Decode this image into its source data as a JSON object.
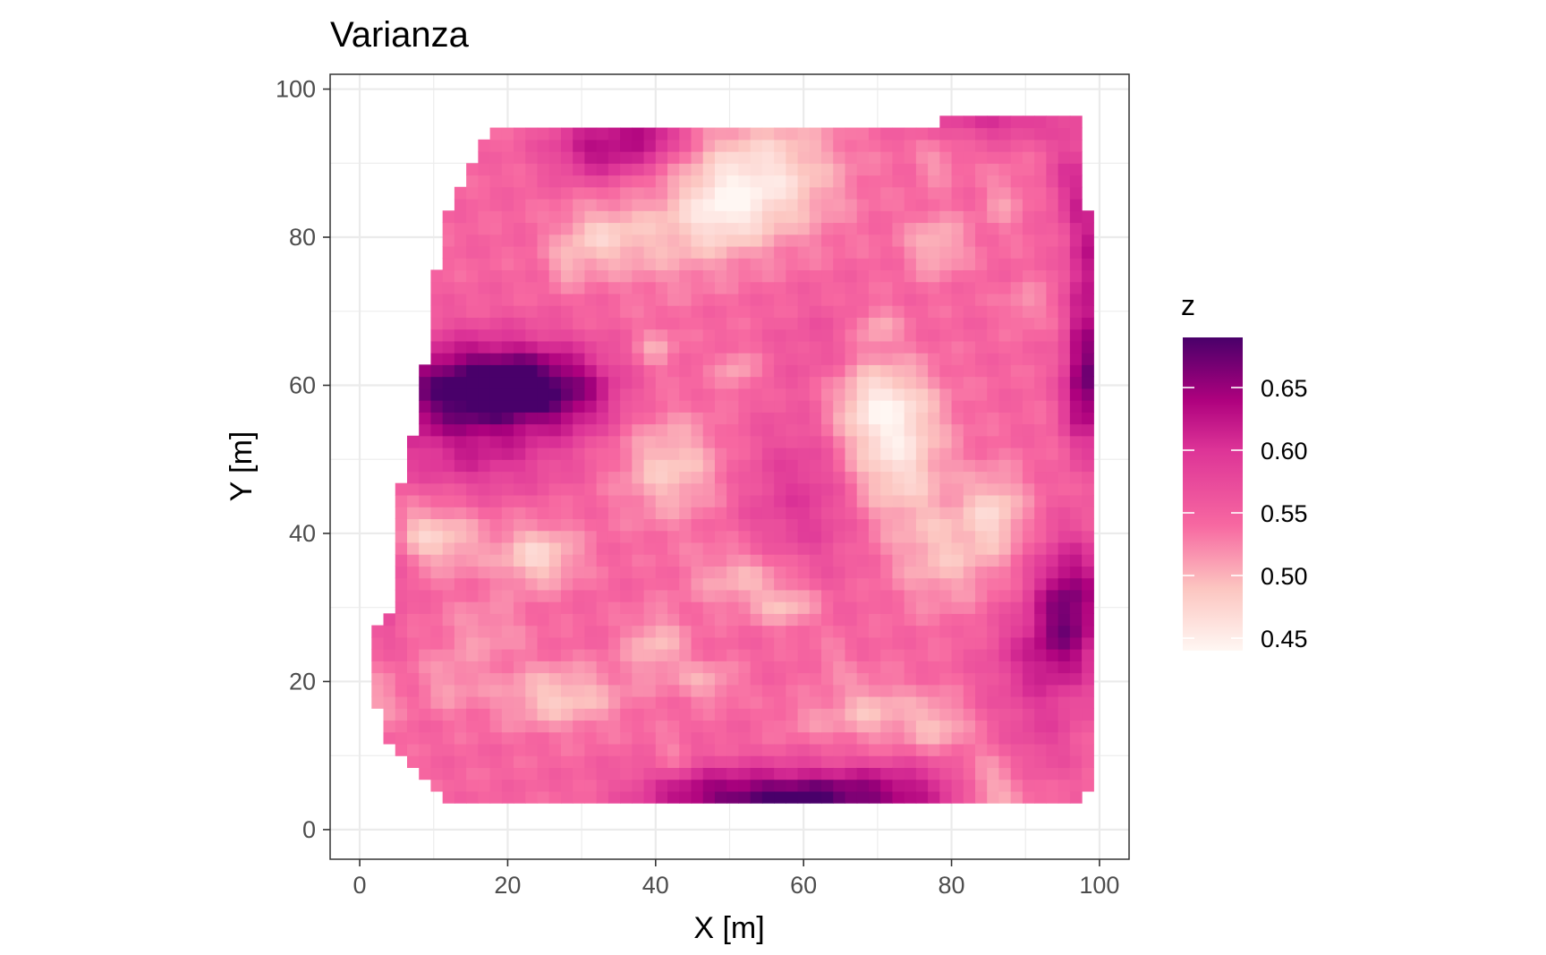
{
  "chart_data": {
    "type": "heatmap",
    "title": "Varianza",
    "xlabel": "X [m]",
    "ylabel": "Y [m]",
    "xlim": [
      -4,
      104
    ],
    "ylim": [
      -4,
      102
    ],
    "x_ticks": [
      0,
      20,
      40,
      60,
      80,
      100
    ],
    "y_ticks": [
      0,
      20,
      40,
      60,
      80,
      100
    ],
    "x_tick_labels": [
      "0",
      "20",
      "40",
      "60",
      "80",
      "100"
    ],
    "y_tick_labels": [
      "0",
      "20",
      "40",
      "60",
      "80",
      "100"
    ],
    "grid": true,
    "colorbar": {
      "title": "z",
      "range": [
        0.44,
        0.69
      ],
      "ticks": [
        0.65,
        0.6,
        0.55,
        0.5,
        0.45
      ],
      "tick_labels": [
        "0.65",
        "0.60",
        "0.55",
        "0.50",
        "0.45"
      ],
      "stops": [
        {
          "value": 0.44,
          "color": "#fff7f3"
        },
        {
          "value": 0.49,
          "color": "#fcc5c0"
        },
        {
          "value": 0.54,
          "color": "#f768a1"
        },
        {
          "value": 0.6,
          "color": "#dd3497"
        },
        {
          "value": 0.64,
          "color": "#ae017e"
        },
        {
          "value": 0.69,
          "color": "#49006a"
        }
      ]
    },
    "grid_cell_size": 1.6,
    "domain_boundary": [
      [
        17,
        94
      ],
      [
        35,
        94
      ],
      [
        35,
        95
      ],
      [
        78,
        95
      ],
      [
        78,
        97
      ],
      [
        97,
        97
      ],
      [
        97,
        83
      ],
      [
        99,
        83
      ],
      [
        99,
        6
      ],
      [
        97,
        3
      ],
      [
        13,
        3
      ],
      [
        8,
        7
      ],
      [
        5,
        10
      ],
      [
        3,
        14
      ],
      [
        1,
        20
      ],
      [
        3,
        30
      ],
      [
        4,
        30
      ],
      [
        5,
        42
      ],
      [
        6,
        51
      ],
      [
        7,
        51
      ],
      [
        8,
        63
      ],
      [
        9,
        63
      ],
      [
        9,
        73
      ],
      [
        10,
        73
      ],
      [
        11,
        81
      ],
      [
        12,
        83
      ],
      [
        14,
        87
      ],
      [
        16,
        91
      ]
    ],
    "value_field": {
      "base": 0.545,
      "features": [
        {
          "x": 14,
          "y": 59,
          "sx": 9,
          "sy": 5,
          "a": 0.135
        },
        {
          "x": 24,
          "y": 60,
          "sx": 7,
          "sy": 4,
          "a": 0.08
        },
        {
          "x": 30,
          "y": 58,
          "sx": 4,
          "sy": 4,
          "a": 0.03
        },
        {
          "x": 16,
          "y": 49,
          "sx": 8,
          "sy": 3,
          "a": 0.04
        },
        {
          "x": 58,
          "y": 4,
          "sx": 9,
          "sy": 3,
          "a": 0.14
        },
        {
          "x": 44,
          "y": 5,
          "sx": 6,
          "sy": 3,
          "a": 0.05
        },
        {
          "x": 72,
          "y": 5,
          "sx": 6,
          "sy": 3,
          "a": 0.06
        },
        {
          "x": 98,
          "y": 60,
          "sx": 2,
          "sy": 6,
          "a": 0.12
        },
        {
          "x": 98,
          "y": 76,
          "sx": 1.5,
          "sy": 7,
          "a": 0.08
        },
        {
          "x": 96,
          "y": 31,
          "sx": 3.5,
          "sy": 6,
          "a": 0.11
        },
        {
          "x": 92,
          "y": 23,
          "sx": 5,
          "sy": 5,
          "a": 0.06
        },
        {
          "x": 92,
          "y": 12,
          "sx": 4,
          "sy": 4,
          "a": 0.03
        },
        {
          "x": 33,
          "y": 92,
          "sx": 5,
          "sy": 3,
          "a": 0.09
        },
        {
          "x": 40,
          "y": 94,
          "sx": 3,
          "sy": 2,
          "a": 0.06
        },
        {
          "x": 86,
          "y": 96,
          "sx": 6,
          "sy": 2,
          "a": 0.06
        },
        {
          "x": 96,
          "y": 88,
          "sx": 2,
          "sy": 5,
          "a": 0.05
        },
        {
          "x": 60,
          "y": 45,
          "sx": 6,
          "sy": 8,
          "a": 0.05
        },
        {
          "x": 62,
          "y": 65,
          "sx": 4,
          "sy": 5,
          "a": 0.02
        },
        {
          "x": 3,
          "y": 35,
          "sx": 2,
          "sy": 6,
          "a": 0.05
        },
        {
          "x": 79,
          "y": 7,
          "sx": 4,
          "sy": 3,
          "a": 0.02
        },
        {
          "x": 85,
          "y": 8,
          "sx": 3,
          "sy": 3,
          "a": -0.03
        },
        {
          "x": 55,
          "y": 88,
          "sx": 7,
          "sy": 6,
          "a": -0.08
        },
        {
          "x": 49,
          "y": 84,
          "sx": 4,
          "sy": 4,
          "a": -0.05
        },
        {
          "x": 72,
          "y": 50,
          "sx": 5,
          "sy": 6,
          "a": -0.08
        },
        {
          "x": 70,
          "y": 58,
          "sx": 5,
          "sy": 4,
          "a": -0.07
        },
        {
          "x": 42,
          "y": 49,
          "sx": 5,
          "sy": 5,
          "a": -0.06
        },
        {
          "x": 24,
          "y": 37,
          "sx": 4,
          "sy": 3,
          "a": -0.07
        },
        {
          "x": 86,
          "y": 43,
          "sx": 3,
          "sy": 4,
          "a": -0.06
        },
        {
          "x": 79,
          "y": 37,
          "sx": 5,
          "sy": 5,
          "a": -0.05
        },
        {
          "x": 27,
          "y": 18,
          "sx": 6,
          "sy": 3,
          "a": -0.06
        },
        {
          "x": 40,
          "y": 25,
          "sx": 3,
          "sy": 3,
          "a": -0.05
        },
        {
          "x": 52,
          "y": 34,
          "sx": 5,
          "sy": 3,
          "a": -0.05
        },
        {
          "x": 58,
          "y": 30,
          "sx": 3,
          "sy": 2,
          "a": -0.05
        },
        {
          "x": 12,
          "y": 20,
          "sx": 3,
          "sy": 3,
          "a": -0.03
        },
        {
          "x": 2,
          "y": 17,
          "sx": 2,
          "sy": 3,
          "a": -0.04
        },
        {
          "x": 8,
          "y": 40,
          "sx": 3,
          "sy": 3,
          "a": -0.05
        },
        {
          "x": 13,
          "y": 39,
          "sx": 3,
          "sy": 3,
          "a": -0.04
        },
        {
          "x": 41,
          "y": 80,
          "sx": 6,
          "sy": 5,
          "a": -0.04
        },
        {
          "x": 32,
          "y": 80,
          "sx": 4,
          "sy": 3,
          "a": -0.05
        },
        {
          "x": 28,
          "y": 76,
          "sx": 2,
          "sy": 2,
          "a": -0.03
        },
        {
          "x": 70,
          "y": 68,
          "sx": 2,
          "sy": 2,
          "a": -0.04
        },
        {
          "x": 78,
          "y": 79,
          "sx": 3,
          "sy": 3,
          "a": -0.05
        },
        {
          "x": 78,
          "y": 90,
          "sx": 2,
          "sy": 2,
          "a": -0.03
        },
        {
          "x": 87,
          "y": 85,
          "sx": 2,
          "sy": 3,
          "a": -0.03
        },
        {
          "x": 90,
          "y": 71,
          "sx": 2,
          "sy": 2,
          "a": -0.03
        },
        {
          "x": 40,
          "y": 65,
          "sx": 2,
          "sy": 2,
          "a": -0.04
        },
        {
          "x": 51,
          "y": 62,
          "sx": 2,
          "sy": 2,
          "a": -0.04
        },
        {
          "x": 69,
          "y": 16,
          "sx": 4,
          "sy": 3,
          "a": -0.05
        },
        {
          "x": 78,
          "y": 14,
          "sx": 3,
          "sy": 3,
          "a": -0.05
        },
        {
          "x": 47,
          "y": 20,
          "sx": 3,
          "sy": 2,
          "a": -0.04
        },
        {
          "x": 42,
          "y": 10,
          "sx": 2,
          "sy": 2,
          "a": -0.03
        },
        {
          "x": 64,
          "y": 23,
          "sx": 2,
          "sy": 2,
          "a": -0.02
        },
        {
          "x": 17,
          "y": 27,
          "sx": 4,
          "sy": 3,
          "a": -0.03
        },
        {
          "x": 60,
          "y": 15,
          "sx": 3,
          "sy": 2,
          "a": -0.02
        },
        {
          "x": 86,
          "y": 5,
          "sx": 3,
          "sy": 2,
          "a": -0.03
        }
      ]
    }
  }
}
